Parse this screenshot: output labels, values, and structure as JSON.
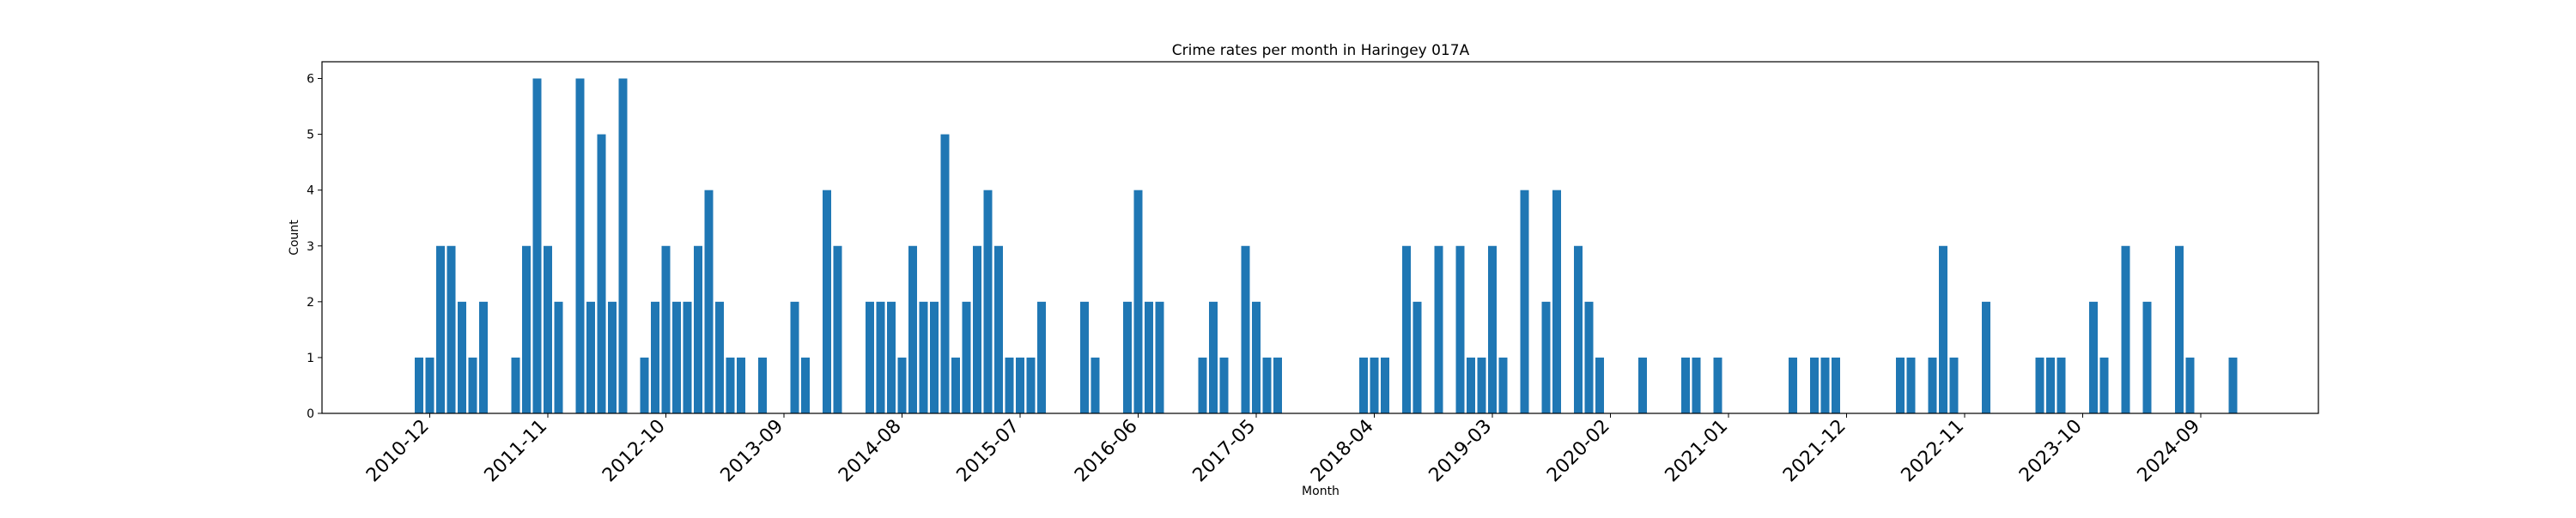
{
  "chart_data": {
    "type": "bar",
    "title": "Crime rates per month in Haringey 017A",
    "xlabel": "Month",
    "ylabel": "Count",
    "ylim": [
      0,
      6.3
    ],
    "yticks": [
      0,
      1,
      2,
      3,
      4,
      5,
      6
    ],
    "xtick_labels": [
      "2010-12",
      "2011-11",
      "2012-10",
      "2013-09",
      "2014-08",
      "2015-07",
      "2016-06",
      "2017-05",
      "2018-04",
      "2019-03",
      "2020-02",
      "2021-01",
      "2021-12",
      "2022-11",
      "2023-10",
      "2024-09"
    ],
    "grid": false,
    "bar_color": "#1f77b4",
    "x": [
      "2010-11",
      "2010-12",
      "2011-01",
      "2011-02",
      "2011-03",
      "2011-04",
      "2011-05",
      "2011-08",
      "2011-09",
      "2011-10",
      "2011-11",
      "2011-12",
      "2012-02",
      "2012-03",
      "2012-04",
      "2012-05",
      "2012-06",
      "2012-08",
      "2012-09",
      "2012-10",
      "2012-11",
      "2012-12",
      "2013-01",
      "2013-02",
      "2013-03",
      "2013-04",
      "2013-05",
      "2013-07",
      "2013-10",
      "2013-11",
      "2014-01",
      "2014-02",
      "2014-05",
      "2014-06",
      "2014-07",
      "2014-08",
      "2014-09",
      "2014-10",
      "2014-11",
      "2014-12",
      "2015-01",
      "2015-02",
      "2015-03",
      "2015-04",
      "2015-05",
      "2015-06",
      "2015-07",
      "2015-08",
      "2015-09",
      "2016-01",
      "2016-02",
      "2016-05",
      "2016-06",
      "2016-07",
      "2016-08",
      "2016-12",
      "2017-01",
      "2017-02",
      "2017-04",
      "2017-05",
      "2017-06",
      "2017-07",
      "2018-03",
      "2018-04",
      "2018-05",
      "2018-07",
      "2018-08",
      "2018-10",
      "2018-12",
      "2019-01",
      "2019-02",
      "2019-03",
      "2019-04",
      "2019-06",
      "2019-08",
      "2019-09",
      "2019-11",
      "2019-12",
      "2020-01",
      "2020-05",
      "2020-09",
      "2020-10",
      "2020-12",
      "2021-07",
      "2021-09",
      "2021-10",
      "2021-11",
      "2022-05",
      "2022-06",
      "2022-08",
      "2022-09",
      "2022-10",
      "2023-01",
      "2023-06",
      "2023-07",
      "2023-08",
      "2023-11",
      "2023-12",
      "2024-02",
      "2024-04",
      "2024-07",
      "2024-08",
      "2024-12"
    ],
    "values": [
      1,
      1,
      3,
      3,
      2,
      1,
      2,
      1,
      3,
      6,
      3,
      2,
      6,
      2,
      5,
      2,
      6,
      1,
      2,
      3,
      2,
      2,
      3,
      4,
      2,
      1,
      1,
      1,
      2,
      1,
      4,
      3,
      2,
      2,
      2,
      1,
      3,
      2,
      2,
      5,
      1,
      2,
      3,
      4,
      3,
      1,
      1,
      1,
      2,
      2,
      1,
      2,
      4,
      2,
      2,
      1,
      2,
      1,
      3,
      2,
      1,
      1,
      1,
      1,
      1,
      3,
      2,
      3,
      3,
      1,
      1,
      3,
      1,
      4,
      2,
      4,
      3,
      2,
      1,
      1,
      1,
      1,
      1,
      1,
      1,
      1,
      1,
      1,
      1,
      1,
      3,
      1,
      2,
      1,
      1,
      1,
      2,
      1,
      3,
      2,
      3,
      1,
      1
    ]
  }
}
